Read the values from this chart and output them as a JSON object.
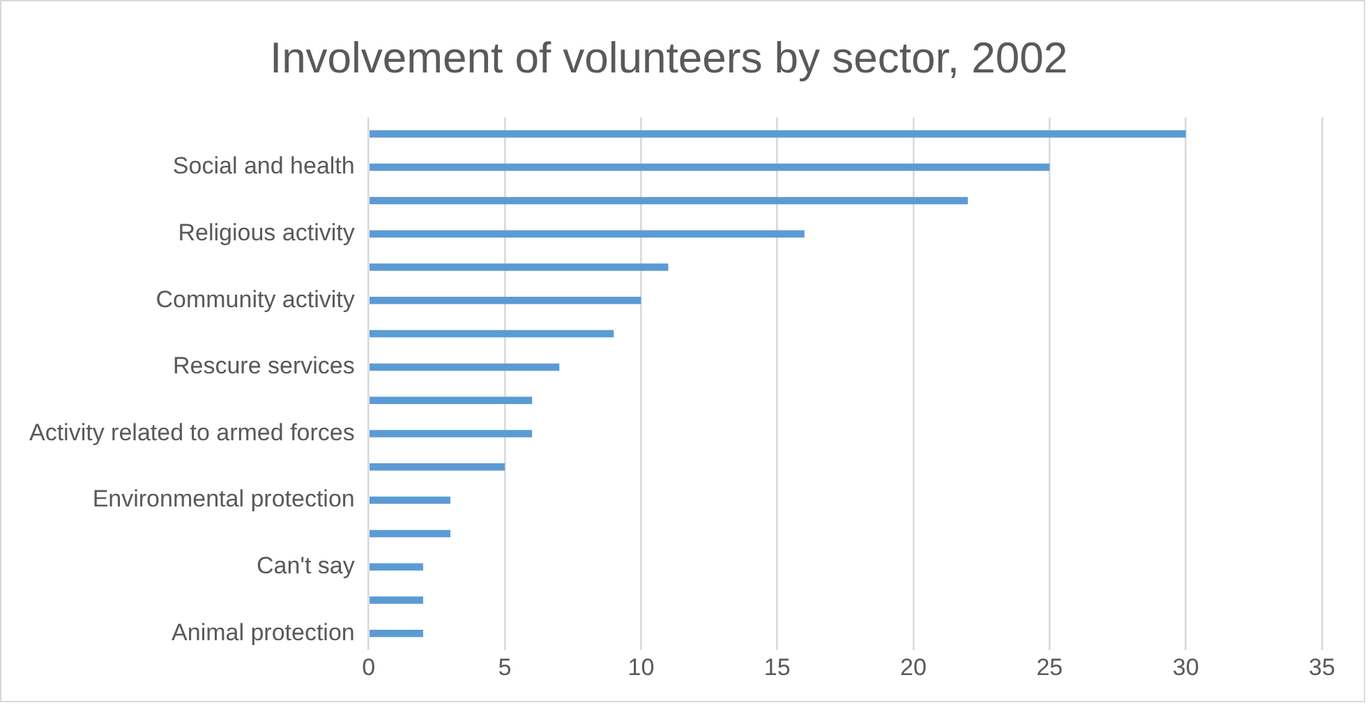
{
  "chart_data": {
    "type": "bar",
    "orientation": "horizontal",
    "title": "Involvement of volunteers by sector, 2002",
    "categories": [
      null,
      "Social and health",
      null,
      "Religious activity",
      null,
      "Community activity",
      null,
      "Rescure services",
      null,
      "Activity related to armed forces",
      null,
      "Environmental protection",
      null,
      "Can't say",
      null,
      "Animal protection"
    ],
    "values": [
      30,
      25,
      22,
      16,
      11,
      10,
      9,
      7,
      6,
      6,
      5,
      3,
      3,
      2,
      2,
      2
    ],
    "color": "#5b9bd5",
    "xlim": [
      0,
      35
    ],
    "xticks": [
      0,
      5,
      10,
      15,
      20,
      25,
      30,
      35
    ],
    "grid": "x",
    "legend": false
  }
}
